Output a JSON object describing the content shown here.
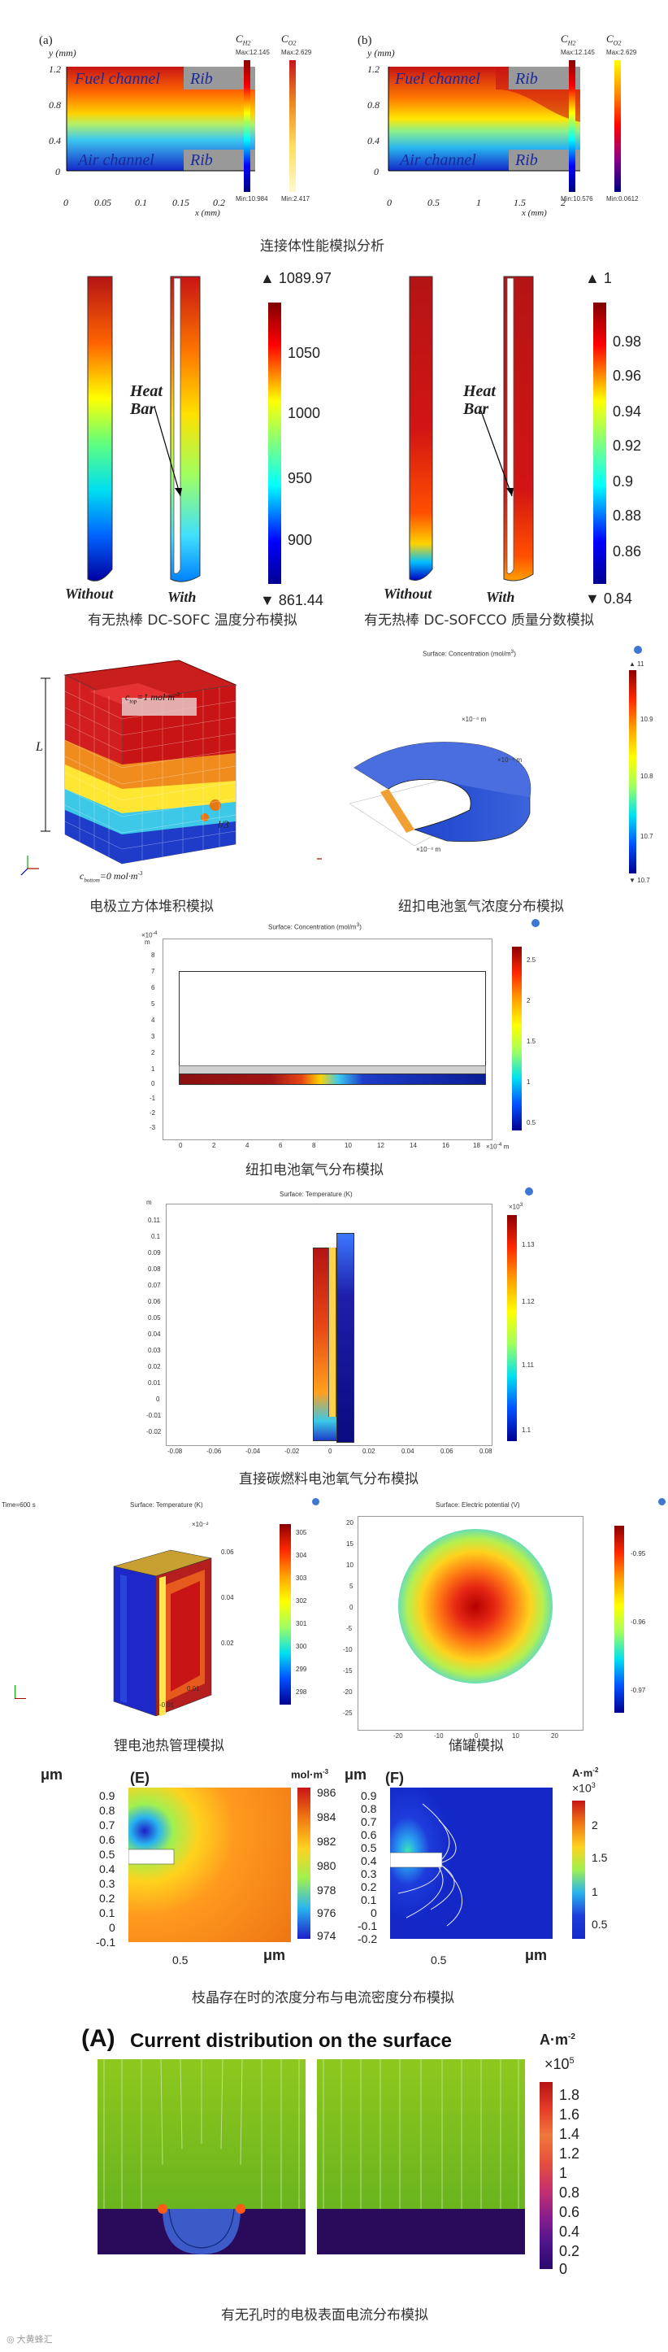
{
  "captions": {
    "c1": "连接体性能模拟分析",
    "c2a": "有无热棒 DC-SOFC 温度分布模拟",
    "c2b": "有无热棒 DC-SOFCCO 质量分数模拟",
    "c3a": "电极立方体堆积模拟",
    "c3b": "纽扣电池氢气浓度分布模拟",
    "c4": "纽扣电池氧气分布模拟",
    "c5": "直接碳燃料电池氧气分布模拟",
    "c6a": "锂电池热管理模拟",
    "c6b": "储罐模拟",
    "c7": "枝晶存在时的浓度分布与电流密度分布模拟",
    "c8": "有无孔时的电极表面电流分布模拟"
  },
  "fig1": {
    "a": {
      "label": "(a)",
      "yaxis": "y (mm)",
      "xaxis": "x (mm)",
      "fuel": "Fuel channel",
      "air": "Air channel",
      "rib": "Rib",
      "yticks": [
        "1.2",
        "0.8",
        "0.4",
        "0"
      ],
      "xticks": [
        "0",
        "0.05",
        "0.1",
        "0.15",
        "0.2"
      ],
      "cb1_title": "C",
      "cb1_sub": "H2",
      "cb1_max": "Max:12.145",
      "cb1_min": "Min:10.984",
      "cb2_title": "C",
      "cb2_sub": "O2",
      "cb2_max": "Max:2.629",
      "cb2_min": "Min:2.417"
    },
    "b": {
      "label": "(b)",
      "yaxis": "y (mm)",
      "xaxis": "x (mm)",
      "fuel": "Fuel channel",
      "air": "Air channel",
      "rib": "Rib",
      "yticks": [
        "1.2",
        "0.8",
        "0.4",
        "0"
      ],
      "xticks": [
        "0",
        "0.5",
        "1",
        "1.5",
        "2"
      ],
      "cb1_title": "C",
      "cb1_sub": "H2",
      "cb1_max": "Max:12.145",
      "cb1_min": "Min:10.576",
      "cb2_title": "C",
      "cb2_sub": "O2",
      "cb2_max": "Max:2.629",
      "cb2_min": "Min:0.0612"
    }
  },
  "fig2": {
    "left": {
      "heatbar": "Heat Bar",
      "without": "Without",
      "with": "With",
      "max": "1089.97",
      "min": "861.44",
      "ticks": [
        "1050",
        "1000",
        "950",
        "900"
      ]
    },
    "right": {
      "heatbar": "Heat Bar",
      "without": "Without",
      "with": "With",
      "max": "1",
      "min": "0.84",
      "ticks": [
        "0.98",
        "0.96",
        "0.94",
        "0.92",
        "0.9",
        "0.88",
        "0.86"
      ]
    }
  },
  "fig3": {
    "cube": {
      "ctop": "c",
      "ctop_sub": "top",
      "ctop_val": "=1 mol·m",
      "ctop_exp": "-3",
      "cbot": "c",
      "cbot_sub": "bottom",
      "cbot_val": "=0 mol·m",
      "cbot_exp": "-3",
      "L": "L",
      "l3": "l/3"
    },
    "coin": {
      "title": "Surface: Concentration (mol/m",
      "title_exp": "3",
      "title_end": ")",
      "max": "▲ 11",
      "min": "▼ 10.7",
      "ticks": [
        "10.9",
        "10.8",
        "10.7"
      ]
    }
  },
  "fig4": {
    "title": "Surface: Concentration (mol/m",
    "title_exp": "3",
    "title_end": ")",
    "yexp": "×10",
    "yexp_pow": "-4",
    "yunit": "m",
    "yticks": [
      "8",
      "7",
      "6",
      "5",
      "4",
      "3",
      "2",
      "1",
      "0",
      "-1",
      "-2",
      "-3"
    ],
    "xticks": [
      "0",
      "2",
      "4",
      "6",
      "8",
      "10",
      "12",
      "14",
      "16",
      "18"
    ],
    "xexp": "×10",
    "xexp_pow": "-4",
    "xunit": "m",
    "cbticks": [
      "2.5",
      "2",
      "1.5",
      "1",
      "0.5"
    ]
  },
  "fig5": {
    "title": "Surface: Temperature (K)",
    "yunit": "m",
    "yticks": [
      "0.11",
      "0.1",
      "0.09",
      "0.08",
      "0.07",
      "0.06",
      "0.05",
      "0.04",
      "0.03",
      "0.02",
      "0.01",
      "0",
      "-0.01",
      "-0.02"
    ],
    "xticks": [
      "-0.08",
      "-0.06",
      "-0.04",
      "-0.02",
      "0",
      "0.02",
      "0.04",
      "0.06",
      "0.08"
    ],
    "cbexp": "×10",
    "cbexp_pow": "3",
    "cbticks": [
      "1.13",
      "1.12",
      "1.11",
      "1.1"
    ]
  },
  "fig6": {
    "battery": {
      "time": "Time=600 s",
      "title": "Surface: Temperature (K)",
      "cbticks": [
        "305",
        "304",
        "303",
        "302",
        "301",
        "300",
        "299",
        "298"
      ]
    },
    "tank": {
      "title": "Surface: Electric potential (V)",
      "yticks": [
        "20",
        "15",
        "10",
        "5",
        "0",
        "-5",
        "-10",
        "-15",
        "-20",
        "-25"
      ],
      "xticks": [
        "-20",
        "-10",
        "0",
        "10",
        "20"
      ],
      "cbticks": [
        "-0.95",
        "-0.96",
        "-0.97"
      ]
    }
  },
  "fig7": {
    "E": {
      "label": "(E)",
      "yunit": "μm",
      "xunit": "μm",
      "cbunit": "mol·m",
      "cbunit_exp": "-3",
      "yticks": [
        "0.9",
        "0.8",
        "0.7",
        "0.6",
        "0.5",
        "0.4",
        "0.3",
        "0.2",
        "0.1",
        "0",
        "-0.1"
      ],
      "xticks": [
        "0.5"
      ],
      "cbticks": [
        "984",
        "982",
        "980",
        "978",
        "976",
        "974"
      ],
      "cbmax": "986"
    },
    "F": {
      "label": "(F)",
      "yunit": "μm",
      "xunit": "μm",
      "cbunit": "A·m",
      "cbunit_exp": "-2",
      "cbexp": "×10",
      "cbexp_pow": "3",
      "yticks": [
        "0.9",
        "0.8",
        "0.7",
        "0.6",
        "0.5",
        "0.4",
        "0.3",
        "0.2",
        "0.1",
        "0",
        "-0.1",
        "-0.2"
      ],
      "xticks": [
        "0.5"
      ],
      "cbticks": [
        "2",
        "1.5",
        "1",
        "0.5"
      ]
    }
  },
  "fig8": {
    "label": "(A)",
    "title": "Current distribution on the surface",
    "cbunit": "A·m",
    "cbunit_exp": "-2",
    "cbexp": "×10",
    "cbexp_pow": "5",
    "cbticks": [
      "1.8",
      "1.6",
      "1.4",
      "1.2",
      "1",
      "0.8",
      "0.6",
      "0.4",
      "0.2",
      "0"
    ]
  },
  "watermark": "大黄蜂汇"
}
